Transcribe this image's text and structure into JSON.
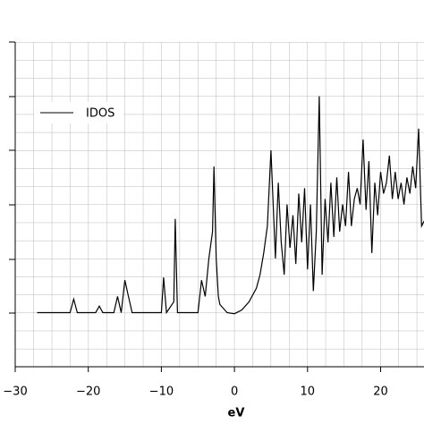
{
  "chart_data": {
    "type": "line",
    "x_label": "eV",
    "xlim": [
      -30,
      26
    ],
    "ylim": [
      0,
      6
    ],
    "xticks": [
      {
        "value": -30,
        "label": "−30"
      },
      {
        "value": -20,
        "label": "−20"
      },
      {
        "value": -10,
        "label": "−10"
      },
      0,
      10,
      20
    ],
    "grid": true,
    "legend": "upper left",
    "x": [
      -27,
      -22.5,
      -22,
      -21.5,
      -19,
      -18.5,
      -18,
      -16.5,
      -16,
      -15.5,
      -15,
      -14.5,
      -14,
      -10,
      -9.7,
      -9.3,
      -8.3,
      -8.1,
      -7.8,
      -5,
      -4.5,
      -4,
      -3.5,
      -3,
      -2.8,
      -2.5,
      -2.2,
      -2,
      -1,
      0,
      1,
      2,
      3,
      3.5,
      4,
      4.5,
      5,
      5.3,
      5.6,
      6,
      6.4,
      6.8,
      7.2,
      7.6,
      8,
      8.4,
      8.8,
      9.2,
      9.6,
      10,
      10.4,
      10.8,
      11.2,
      11.6,
      12,
      12.4,
      12.8,
      13.2,
      13.6,
      14,
      14.4,
      14.8,
      15.2,
      15.6,
      16,
      16.4,
      16.8,
      17.2,
      17.6,
      18,
      18.4,
      18.8,
      19.2,
      19.6,
      20,
      20.4,
      20.8,
      21.2,
      21.6,
      22,
      22.4,
      22.8,
      23.2,
      23.6,
      24,
      24.4,
      24.8,
      25.2,
      25.6,
      26
    ],
    "series": [
      {
        "name": "IDOS",
        "color": "#000000",
        "values": [
          1.0,
          1.0,
          1.25,
          1.0,
          1.0,
          1.12,
          1.0,
          1.0,
          1.3,
          1.0,
          1.6,
          1.3,
          1.0,
          1.0,
          1.65,
          1.0,
          1.2,
          2.73,
          1.0,
          1.0,
          1.6,
          1.3,
          2.0,
          2.5,
          3.7,
          2.0,
          1.3,
          1.15,
          1.0,
          0.98,
          1.05,
          1.2,
          1.45,
          1.7,
          2.1,
          2.6,
          4.0,
          3.0,
          2.0,
          3.4,
          2.3,
          1.7,
          3.0,
          2.2,
          2.8,
          1.9,
          3.2,
          2.3,
          3.3,
          1.8,
          3.0,
          1.4,
          2.5,
          5.0,
          1.7,
          3.1,
          2.3,
          3.4,
          2.4,
          3.5,
          2.5,
          3.0,
          2.6,
          3.6,
          2.6,
          3.1,
          3.3,
          3.0,
          4.2,
          2.9,
          3.8,
          2.1,
          3.4,
          2.8,
          3.6,
          3.2,
          3.4,
          3.9,
          3.1,
          3.6,
          3.1,
          3.4,
          3.0,
          3.5,
          3.2,
          3.7,
          3.3,
          4.4,
          2.6,
          2.7
        ]
      }
    ]
  }
}
